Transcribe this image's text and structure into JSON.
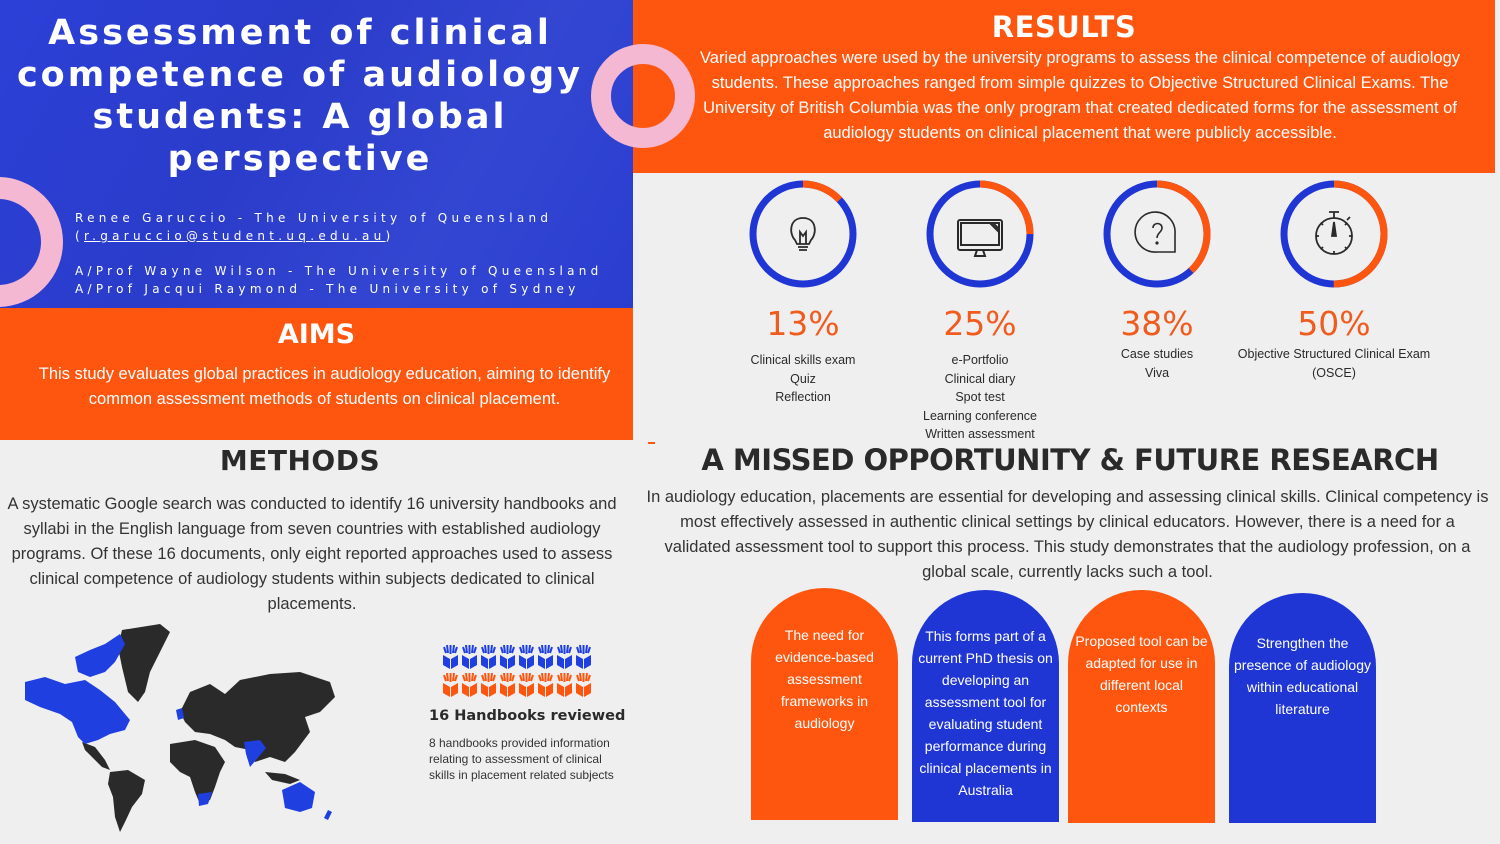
{
  "header": {
    "title": "Assessment of clinical competence of audiology students: A global perspective",
    "authors": [
      {
        "line": "Renee Garuccio - The University of Queensland"
      },
      {
        "email_prefix": "(",
        "email": "r.garuccio@student.uq.edu.au",
        "email_suffix": ")"
      },
      {
        "line": "A/Prof Wayne Wilson - The University of Queensland"
      },
      {
        "line": "A/Prof Jacqui Raymond - The University of Sydney"
      }
    ]
  },
  "aims": {
    "heading": "AIMS",
    "text": "This study evaluates global practices in audiology education, aiming to identify common assessment methods of students on clinical placement."
  },
  "methods": {
    "heading": "METHODS",
    "text": "A systematic Google search was conducted to identify 16 university handbooks and syllabi in the English language from seven countries with established audiology programs. Of these 16 documents, only eight reported approaches used to assess clinical competence of audiology students within subjects dedicated to clinical placements.",
    "map_icon": "world-map",
    "highlighted_regions": [
      "North America",
      "United Kingdom",
      "India",
      "South Africa",
      "Australia",
      "New Zealand"
    ],
    "handbooks": {
      "total": 16,
      "reported": 8,
      "title": "16 Handbooks reviewed",
      "text": "8 handbooks provided information relating to assessment of clinical skills in placement related subjects"
    }
  },
  "results": {
    "heading": "RESULTS",
    "text": "Varied approaches were used by the university programs to assess the clinical competence of audiology students. These approaches ranged from simple quizzes to Objective Structured Clinical Exams.  The University of British Columbia was the only program that created dedicated forms for the assessment of audiology students on clinical placement that were publicly accessible.",
    "stats": [
      {
        "percent_label": "13%",
        "value": 13,
        "icon": "lightbulb-icon",
        "items": [
          "Clinical skills exam",
          "Quiz",
          "Reflection"
        ]
      },
      {
        "percent_label": "25%",
        "value": 25,
        "icon": "monitor-icon",
        "items": [
          "e-Portfolio",
          "Clinical diary",
          "Spot test",
          "Learning conference",
          "Written assessment"
        ]
      },
      {
        "percent_label": "38%",
        "value": 38,
        "icon": "question-bubble-icon",
        "items": [
          "Case studies",
          "Viva"
        ]
      },
      {
        "percent_label": "50%",
        "value": 50,
        "icon": "stopwatch-icon",
        "items": [
          "Objective Structured Clinical Exam",
          "(OSCE)"
        ]
      }
    ]
  },
  "future": {
    "heading": "A MISSED OPPORTUNITY & FUTURE RESEARCH",
    "text": "In audiology education, placements are essential for developing and assessing clinical skills. Clinical competency is most effectively assessed in authentic clinical settings by clinical educators. However, there is a need for a validated assessment tool to support this process. This study demonstrates that the audiology profession, on a global scale, currently lacks such a tool.",
    "cards": [
      {
        "text": "The need for evidence-based assessment frameworks in audiology"
      },
      {
        "text": "This forms part of a current PhD thesis on developing an assessment tool for evaluating student performance during clinical placements in Australia"
      },
      {
        "text": "Proposed tool can be adapted for use in different local contexts"
      },
      {
        "text": "Strengthen the presence of audiology within educational literature"
      }
    ]
  },
  "colors": {
    "orange": "#fe560f",
    "blue": "#2b3fd6",
    "pink": "#f4b8d2",
    "background": "#efefef",
    "ring_blue": "#1f36d4"
  }
}
